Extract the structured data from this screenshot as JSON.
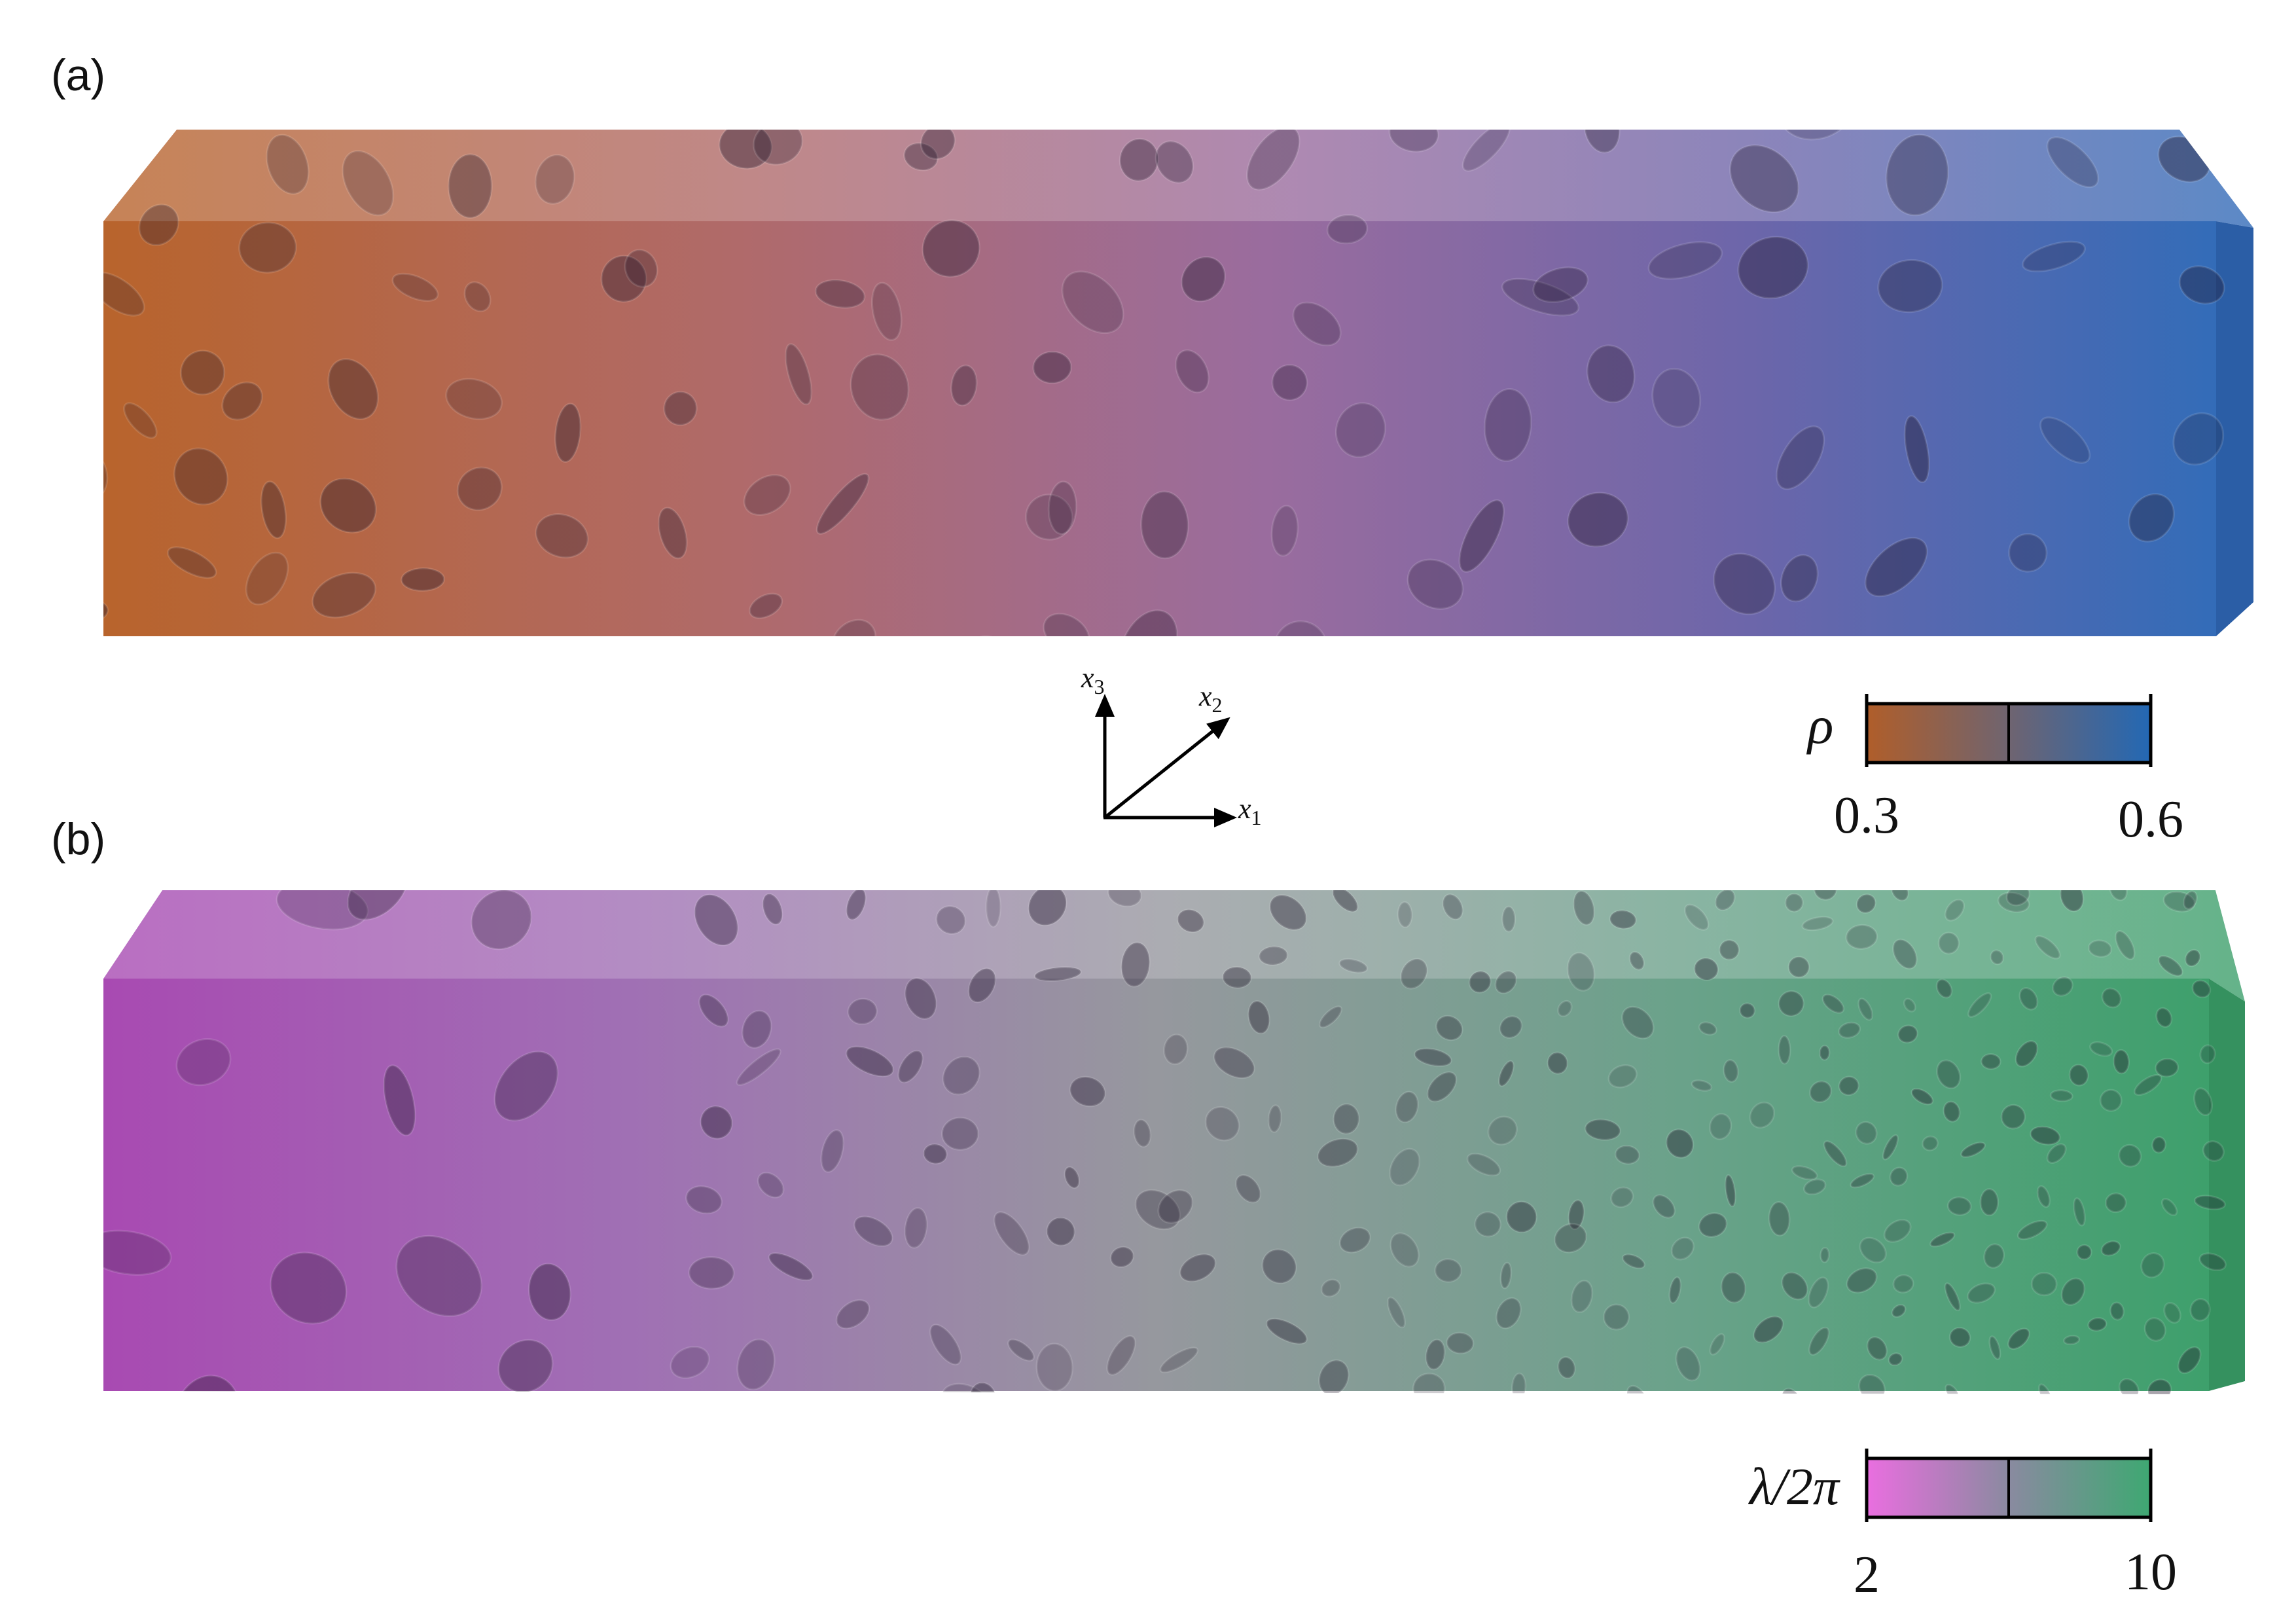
{
  "panels": [
    {
      "label": "(a)",
      "colorbar": {
        "symbol": "ρ",
        "min_label": "0.3",
        "max_label": "0.6",
        "colors": [
          "#b05e2a",
          "#6f6470",
          "#2368b4"
        ]
      },
      "structure_colors": [
        "#b5622c",
        "#a06d98",
        "#8a6aa6",
        "#3e6cb6"
      ],
      "feature_scale": "coarse-to-coarse, porosity increasing along x1"
    },
    {
      "label": "(b)",
      "colorbar": {
        "symbol": "λ/2π",
        "min_label": "2",
        "max_label": "10",
        "colors": [
          "#ea6ee0",
          "#8a8aa0",
          "#3ea872"
        ]
      },
      "structure_colors": [
        "#a64cb0",
        "#9c8aa8",
        "#8ea29e",
        "#3f9e6c"
      ],
      "feature_scale": "coarse-to-fine along x1"
    }
  ],
  "axes_triad": {
    "x1": "x",
    "x1_sub": "1",
    "x2": "x",
    "x2_sub": "2",
    "x3": "x",
    "x3_sub": "3"
  }
}
